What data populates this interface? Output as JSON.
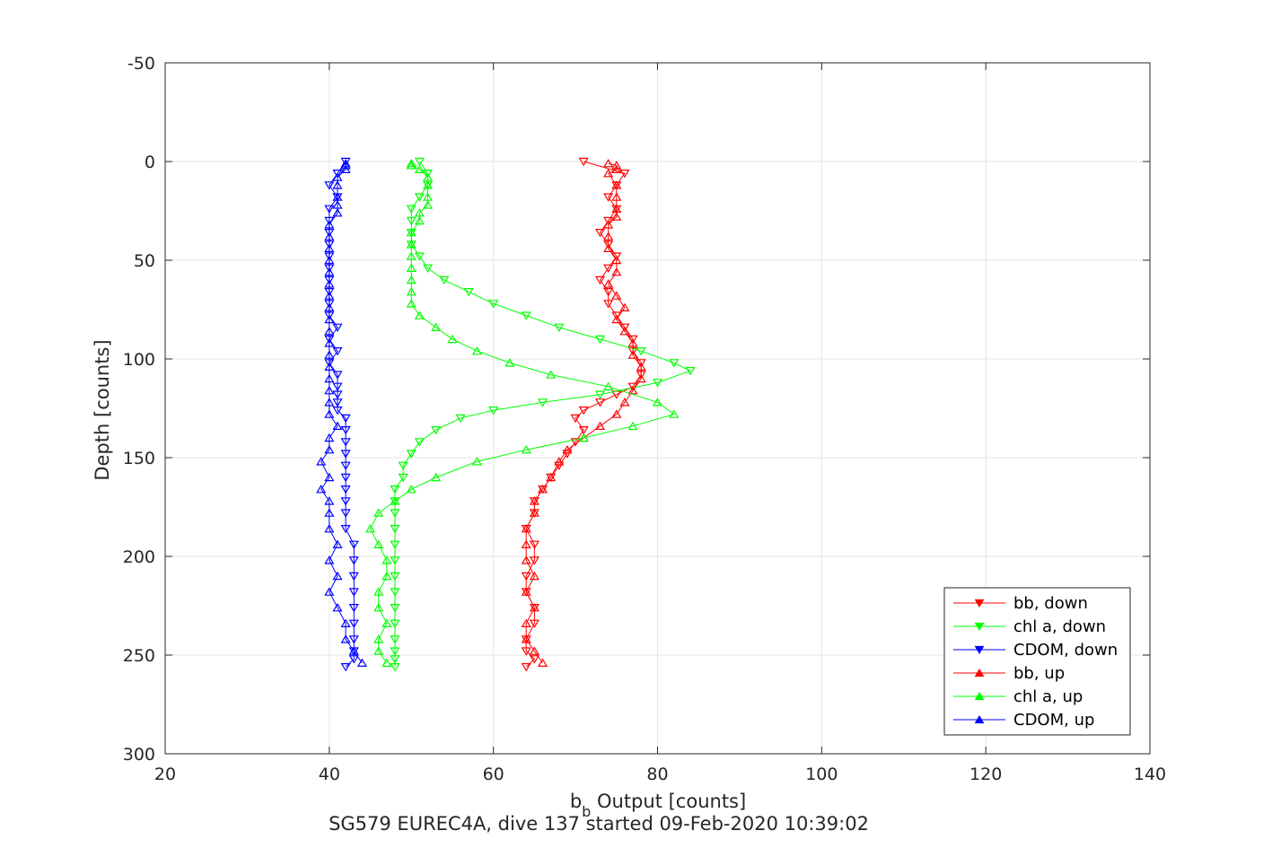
{
  "chart_data": {
    "type": "line",
    "title": "SG579 EUREC4A, dive 137 started 09-Feb-2020 10:39:02",
    "xlabel_main": "b",
    "xlabel_sub": "b",
    "xlabel_rest": " Output [counts]",
    "ylabel": "Depth [counts]",
    "xlim": [
      20,
      140
    ],
    "ylim": [
      -50,
      300
    ],
    "y_reversed": true,
    "grid": true,
    "legend_position": "bottom-right",
    "xticks": [
      20,
      40,
      60,
      80,
      100,
      120,
      140
    ],
    "yticks": [
      -50,
      0,
      50,
      100,
      150,
      200,
      250,
      300
    ],
    "xtick_labels": [
      "20",
      "40",
      "60",
      "80",
      "100",
      "120",
      "140"
    ],
    "ytick_labels": [
      "-50",
      "0",
      "50",
      "100",
      "150",
      "200",
      "250",
      "300"
    ],
    "series": [
      {
        "name": "bb, down",
        "color": "#ff0000",
        "marker": "triangle-down",
        "x": [
          71,
          76,
          75,
          74,
          75,
          74,
          73,
          74,
          75,
          74,
          73,
          74,
          74,
          75,
          76,
          77,
          77,
          78,
          78,
          77,
          75,
          73,
          71,
          70,
          71,
          70,
          69,
          68,
          67,
          66,
          65,
          65,
          64,
          65,
          65,
          64,
          64,
          65,
          65,
          64,
          64,
          65,
          64
        ],
        "y": [
          0,
          6,
          12,
          18,
          24,
          30,
          36,
          42,
          48,
          54,
          60,
          66,
          72,
          78,
          84,
          90,
          96,
          102,
          108,
          114,
          118,
          122,
          126,
          130,
          136,
          142,
          148,
          154,
          160,
          166,
          172,
          178,
          186,
          194,
          202,
          210,
          218,
          226,
          234,
          242,
          248,
          252,
          256
        ]
      },
      {
        "name": "chl a, down",
        "color": "#00ff00",
        "marker": "triangle-down",
        "x": [
          51,
          52,
          52,
          51,
          50,
          50,
          50,
          50,
          51,
          52,
          54,
          57,
          60,
          64,
          68,
          73,
          78,
          82,
          84,
          80,
          73,
          66,
          60,
          56,
          53,
          51,
          50,
          49,
          49,
          48,
          48,
          48,
          48,
          48,
          48,
          48,
          48,
          48,
          48,
          48,
          48,
          48,
          48
        ],
        "y": [
          0,
          6,
          12,
          18,
          24,
          30,
          36,
          42,
          48,
          54,
          60,
          66,
          72,
          78,
          84,
          90,
          96,
          102,
          106,
          112,
          118,
          122,
          126,
          130,
          136,
          142,
          148,
          154,
          160,
          166,
          172,
          178,
          186,
          194,
          202,
          210,
          218,
          226,
          234,
          242,
          248,
          252,
          256
        ]
      },
      {
        "name": "CDOM, down",
        "color": "#0000ff",
        "marker": "triangle-down",
        "x": [
          42,
          41,
          40,
          41,
          40,
          40,
          40,
          40,
          40,
          40,
          40,
          40,
          40,
          40,
          41,
          40,
          41,
          40,
          41,
          41,
          41,
          41,
          41,
          42,
          42,
          42,
          42,
          42,
          42,
          42,
          42,
          42,
          42,
          43,
          43,
          43,
          43,
          43,
          43,
          43,
          43,
          43,
          42
        ],
        "y": [
          0,
          6,
          12,
          18,
          24,
          30,
          36,
          42,
          48,
          54,
          60,
          66,
          72,
          78,
          84,
          90,
          96,
          102,
          108,
          114,
          118,
          122,
          126,
          130,
          136,
          142,
          148,
          154,
          160,
          166,
          172,
          178,
          186,
          194,
          202,
          210,
          218,
          226,
          234,
          242,
          248,
          252,
          256
        ]
      },
      {
        "name": "bb, up",
        "color": "#ff0000",
        "marker": "triangle-up",
        "x": [
          66,
          65,
          64,
          64,
          65,
          64,
          65,
          64,
          64,
          64,
          65,
          65,
          66,
          67,
          68,
          69,
          71,
          73,
          75,
          76,
          77,
          78,
          78,
          77,
          77,
          76,
          75,
          76,
          75,
          74,
          75,
          75,
          74,
          74,
          74,
          75,
          75,
          75,
          75,
          74,
          75,
          75,
          74
        ],
        "y": [
          254,
          248,
          242,
          234,
          226,
          218,
          210,
          202,
          194,
          186,
          178,
          172,
          166,
          160,
          152,
          146,
          140,
          134,
          128,
          122,
          116,
          110,
          104,
          98,
          92,
          86,
          80,
          74,
          68,
          62,
          56,
          50,
          44,
          38,
          32,
          28,
          24,
          18,
          12,
          6,
          4,
          2,
          1
        ]
      },
      {
        "name": "chl a, up",
        "color": "#00ff00",
        "marker": "triangle-up",
        "x": [
          47,
          46,
          46,
          47,
          46,
          46,
          47,
          47,
          46,
          45,
          46,
          48,
          50,
          53,
          58,
          64,
          71,
          77,
          82,
          80,
          74,
          67,
          62,
          58,
          55,
          53,
          51,
          50,
          50,
          50,
          50,
          50,
          50,
          50,
          51,
          51,
          52,
          52,
          52,
          52,
          51,
          50,
          50
        ],
        "y": [
          254,
          248,
          242,
          234,
          226,
          218,
          210,
          202,
          194,
          186,
          178,
          172,
          166,
          160,
          152,
          146,
          140,
          134,
          128,
          122,
          114,
          108,
          102,
          96,
          90,
          84,
          78,
          72,
          66,
          60,
          54,
          48,
          42,
          36,
          30,
          26,
          22,
          18,
          12,
          8,
          4,
          2,
          1
        ]
      },
      {
        "name": "CDOM, up",
        "color": "#0000ff",
        "marker": "triangle-up",
        "x": [
          44,
          43,
          42,
          42,
          41,
          40,
          41,
          40,
          41,
          40,
          40,
          40,
          39,
          40,
          39,
          40,
          40,
          41,
          40,
          40,
          40,
          40,
          40,
          40,
          40,
          40,
          40,
          40,
          40,
          40,
          40,
          40,
          40,
          40,
          40,
          41,
          41,
          41,
          41,
          41,
          42,
          42,
          42
        ],
        "y": [
          254,
          248,
          242,
          234,
          226,
          218,
          210,
          202,
          194,
          186,
          178,
          172,
          166,
          160,
          152,
          146,
          140,
          134,
          128,
          122,
          116,
          110,
          104,
          98,
          92,
          86,
          80,
          74,
          68,
          62,
          56,
          50,
          44,
          38,
          32,
          26,
          22,
          18,
          12,
          8,
          4,
          2,
          1
        ]
      }
    ]
  }
}
